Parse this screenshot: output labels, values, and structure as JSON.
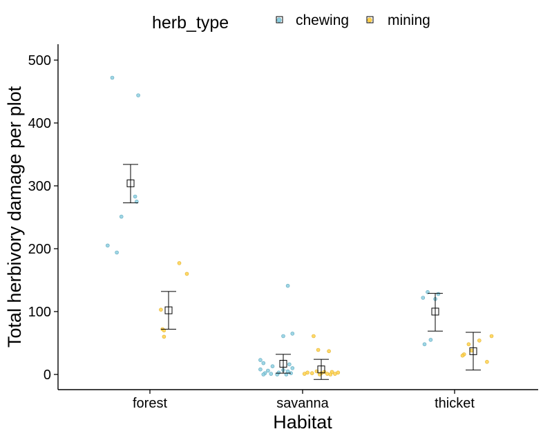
{
  "chart_data": {
    "type": "scatter",
    "xlabel": "Habitat",
    "ylabel": "Total herbivory damage per plot",
    "categories": [
      "forest",
      "savanna",
      "thicket"
    ],
    "yticks": [
      0,
      100,
      200,
      300,
      400,
      500
    ],
    "ytick_labels": [
      "0",
      "100",
      "200",
      "300",
      "400",
      "500"
    ],
    "ylim": [
      -25,
      525
    ],
    "grid": false,
    "legend": {
      "title": "herb_type",
      "position": "top",
      "entries": [
        "chewing",
        "mining"
      ]
    },
    "colors": {
      "chewing": "#8ecfe0",
      "mining": "#ffd24d",
      "summary": "#000000"
    },
    "series": [
      {
        "name": "chewing",
        "points": [
          {
            "category": "forest",
            "jitter": -0.12,
            "y": 472
          },
          {
            "category": "forest",
            "jitter": 0.05,
            "y": 444
          },
          {
            "category": "forest",
            "jitter": 0.03,
            "y": 283
          },
          {
            "category": "forest",
            "jitter": 0.04,
            "y": 275
          },
          {
            "category": "forest",
            "jitter": -0.06,
            "y": 251
          },
          {
            "category": "forest",
            "jitter": -0.15,
            "y": 205
          },
          {
            "category": "forest",
            "jitter": -0.09,
            "y": 194
          },
          {
            "category": "savanna",
            "jitter": 0.03,
            "y": 141
          },
          {
            "category": "savanna",
            "jitter": 0.06,
            "y": 65
          },
          {
            "category": "savanna",
            "jitter": 0.0,
            "y": 61
          },
          {
            "category": "savanna",
            "jitter": -0.15,
            "y": 23
          },
          {
            "category": "savanna",
            "jitter": -0.13,
            "y": 18
          },
          {
            "category": "savanna",
            "jitter": 0.04,
            "y": 16
          },
          {
            "category": "savanna",
            "jitter": -0.07,
            "y": 13
          },
          {
            "category": "savanna",
            "jitter": 0.06,
            "y": 10
          },
          {
            "category": "savanna",
            "jitter": -0.15,
            "y": 8
          },
          {
            "category": "savanna",
            "jitter": 0.0,
            "y": 7
          },
          {
            "category": "savanna",
            "jitter": -0.1,
            "y": 6
          },
          {
            "category": "savanna",
            "jitter": 0.03,
            "y": 5
          },
          {
            "category": "savanna",
            "jitter": -0.03,
            "y": 3
          },
          {
            "category": "savanna",
            "jitter": -0.12,
            "y": 2
          },
          {
            "category": "savanna",
            "jitter": 0.05,
            "y": 2
          },
          {
            "category": "savanna",
            "jitter": -0.08,
            "y": 1
          },
          {
            "category": "savanna",
            "jitter": -0.13,
            "y": 0
          },
          {
            "category": "savanna",
            "jitter": -0.04,
            "y": 0
          },
          {
            "category": "savanna",
            "jitter": 0.02,
            "y": 0
          },
          {
            "category": "thicket",
            "jitter": -0.05,
            "y": 131
          },
          {
            "category": "thicket",
            "jitter": 0.02,
            "y": 128
          },
          {
            "category": "thicket",
            "jitter": -0.08,
            "y": 122
          },
          {
            "category": "thicket",
            "jitter": 0.0,
            "y": 120
          },
          {
            "category": "thicket",
            "jitter": -0.03,
            "y": 55
          },
          {
            "category": "thicket",
            "jitter": -0.07,
            "y": 48
          }
        ],
        "mean": [
          {
            "category": "forest",
            "y": 304,
            "lower": 273,
            "upper": 334
          },
          {
            "category": "savanna",
            "y": 17,
            "lower": 2,
            "upper": 32
          },
          {
            "category": "thicket",
            "y": 100,
            "lower": 69,
            "upper": 129
          }
        ]
      },
      {
        "name": "mining",
        "points": [
          {
            "category": "forest",
            "jitter": 0.07,
            "y": 177
          },
          {
            "category": "forest",
            "jitter": 0.12,
            "y": 160
          },
          {
            "category": "forest",
            "jitter": -0.05,
            "y": 103
          },
          {
            "category": "forest",
            "jitter": -0.04,
            "y": 72
          },
          {
            "category": "forest",
            "jitter": -0.03,
            "y": 70
          },
          {
            "category": "forest",
            "jitter": -0.03,
            "y": 60
          },
          {
            "category": "savanna",
            "jitter": -0.05,
            "y": 61
          },
          {
            "category": "savanna",
            "jitter": -0.02,
            "y": 39
          },
          {
            "category": "savanna",
            "jitter": 0.05,
            "y": 37
          },
          {
            "category": "savanna",
            "jitter": -0.03,
            "y": 5
          },
          {
            "category": "savanna",
            "jitter": 0.02,
            "y": 4
          },
          {
            "category": "savanna",
            "jitter": 0.07,
            "y": 4
          },
          {
            "category": "savanna",
            "jitter": -0.09,
            "y": 3
          },
          {
            "category": "savanna",
            "jitter": 0.11,
            "y": 3
          },
          {
            "category": "savanna",
            "jitter": -0.06,
            "y": 2
          },
          {
            "category": "savanna",
            "jitter": 0.0,
            "y": 2
          },
          {
            "category": "savanna",
            "jitter": 0.04,
            "y": 1
          },
          {
            "category": "savanna",
            "jitter": -0.11,
            "y": 1
          },
          {
            "category": "savanna",
            "jitter": 0.09,
            "y": 1
          },
          {
            "category": "savanna",
            "jitter": -0.01,
            "y": 0
          },
          {
            "category": "savanna",
            "jitter": 0.06,
            "y": 0
          },
          {
            "category": "thicket",
            "jitter": 0.12,
            "y": 61
          },
          {
            "category": "thicket",
            "jitter": 0.04,
            "y": 54
          },
          {
            "category": "thicket",
            "jitter": -0.03,
            "y": 48
          },
          {
            "category": "thicket",
            "jitter": -0.01,
            "y": 38
          },
          {
            "category": "thicket",
            "jitter": -0.06,
            "y": 32
          },
          {
            "category": "thicket",
            "jitter": -0.07,
            "y": 30
          },
          {
            "category": "thicket",
            "jitter": 0.09,
            "y": 20
          }
        ],
        "mean": [
          {
            "category": "forest",
            "y": 102,
            "lower": 72,
            "upper": 132
          },
          {
            "category": "savanna",
            "y": 8,
            "lower": -8,
            "upper": 24
          },
          {
            "category": "thicket",
            "y": 37,
            "lower": 7,
            "upper": 67
          }
        ]
      }
    ]
  }
}
